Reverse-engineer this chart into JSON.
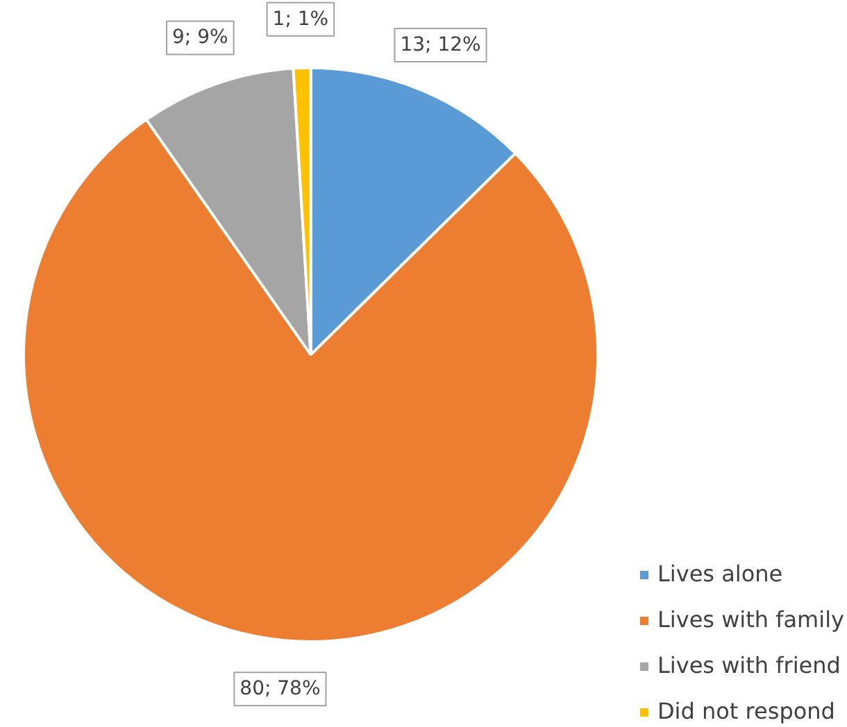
{
  "chart_data": {
    "type": "pie",
    "categories": [
      "Lives alone",
      "Lives with family",
      "Lives with friend",
      "Did not respond"
    ],
    "values": [
      13,
      80,
      9,
      1
    ],
    "colors": [
      "#5b9bd5",
      "#ed7d31",
      "#a5a5a5",
      "#ffc000"
    ],
    "value_labels": [
      "13; 12%",
      "80; 78%",
      "9; 9%",
      "1; 1%"
    ],
    "legend": "bottom right"
  }
}
